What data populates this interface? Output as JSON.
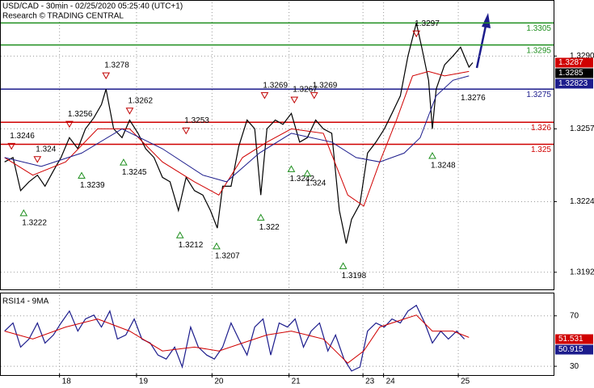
{
  "header": {
    "title": "USD/CAD - 30min - 02/25/2020 05:25:40 (UTC+1)",
    "subtitle": "Research © TRADING CENTRAL"
  },
  "chart_data": [
    {
      "type": "line",
      "xlim": [
        0,
        7.25
      ],
      "ylim": [
        1.31846,
        1.33143
      ],
      "yticks": [
        1.3192,
        1.3224,
        1.3257,
        {
          "value": 1.329,
          "label": "1.3290"
        }
      ],
      "grid": true,
      "x": [
        0.05,
        0.16,
        0.26,
        0.37,
        0.48,
        0.58,
        0.69,
        0.79,
        0.9,
        1.01,
        1.11,
        1.22,
        1.32,
        1.38,
        1.48,
        1.59,
        1.69,
        1.8,
        1.9,
        2.01,
        2.12,
        2.22,
        2.33,
        2.43,
        2.54,
        2.65,
        2.75,
        2.84,
        2.91,
        3.02,
        3.12,
        3.23,
        3.33,
        3.41,
        3.49,
        3.6,
        3.7,
        3.81,
        3.92,
        4.02,
        4.13,
        4.23,
        4.34,
        4.44,
        4.53,
        4.6,
        4.71,
        4.81,
        4.92,
        5.03,
        5.13,
        5.24,
        5.34,
        5.45,
        5.52,
        5.61,
        5.66,
        5.71,
        5.82,
        5.93,
        6.03,
        6.14,
        6.19
      ],
      "series": [
        {
          "color": "#000000",
          "values": [
            1.3242,
            1.3244,
            1.3229,
            1.3233,
            1.3236,
            1.3231,
            1.3238,
            1.3244,
            1.3253,
            1.3248,
            1.3257,
            1.3262,
            1.3268,
            1.3275,
            1.3257,
            1.3253,
            1.3261,
            1.3255,
            1.3248,
            1.3244,
            1.3235,
            1.3233,
            1.322,
            1.3235,
            1.3229,
            1.3227,
            1.322,
            1.3212,
            1.3231,
            1.3231,
            1.3249,
            1.3261,
            1.3257,
            1.3227,
            1.3257,
            1.3261,
            1.3259,
            1.3264,
            1.3251,
            1.3253,
            1.3261,
            1.3257,
            1.3255,
            1.322,
            1.3205,
            1.3216,
            1.3223,
            1.3246,
            1.3251,
            1.3257,
            1.3264,
            1.3272,
            1.329,
            1.3305,
            1.3294,
            1.3279,
            1.3257,
            1.3275,
            1.3286,
            1.329,
            1.3294,
            1.3285,
            1.3287
          ]
        },
        {
          "color": "#d00000",
          "x": [
            0.05,
            0.42,
            0.85,
            1.27,
            1.69,
            2.12,
            2.54,
            2.86,
            3.17,
            3.49,
            3.81,
            4.23,
            4.55,
            4.76,
            4.97,
            5.19,
            5.4,
            5.61,
            5.82,
            6.14
          ],
          "values": [
            1.3244,
            1.3236,
            1.3242,
            1.3257,
            1.3257,
            1.3242,
            1.3233,
            1.3227,
            1.3244,
            1.3251,
            1.3257,
            1.3255,
            1.3227,
            1.3222,
            1.3242,
            1.3261,
            1.3281,
            1.3283,
            1.3281,
            1.3283
          ]
        },
        {
          "color": "#1c1c8c",
          "x": [
            0.05,
            0.53,
            1.06,
            1.59,
            2.12,
            2.65,
            2.96,
            3.39,
            3.81,
            4.34,
            4.66,
            4.97,
            5.29,
            5.5,
            5.71,
            5.93,
            6.14
          ],
          "values": [
            1.3244,
            1.324,
            1.3246,
            1.3257,
            1.3248,
            1.3236,
            1.3233,
            1.3246,
            1.3255,
            1.3251,
            1.3244,
            1.3242,
            1.3246,
            1.3253,
            1.3272,
            1.3279,
            1.3281
          ]
        }
      ],
      "levels": [
        {
          "value": 1.3305,
          "color": "#1f8f1f"
        },
        {
          "value": 1.3295,
          "color": "#1f8f1f"
        },
        {
          "value": 1.3275,
          "color": "#1c1c8c"
        },
        {
          "value": 1.326,
          "color": "#d00000"
        },
        {
          "value": 1.325,
          "color": "#d00000"
        }
      ],
      "price_labels": [
        {
          "value": 1.3287,
          "color": "#d00000"
        },
        {
          "value": 1.3285,
          "color": "#000000"
        },
        {
          "value": 1.32823,
          "color": "#1c1c8c"
        }
      ],
      "annotations": [
        {
          "x": 0.14,
          "value": 1.3246,
          "marker": "down"
        },
        {
          "x": 0.48,
          "value": 1.324,
          "marker": "down"
        },
        {
          "x": 0.3,
          "value": 1.3222,
          "marker": "up"
        },
        {
          "x": 1.06,
          "value": 1.3239,
          "marker": "up"
        },
        {
          "x": 0.9,
          "value": 1.3256,
          "marker": "down"
        },
        {
          "x": 1.38,
          "value": 1.3278,
          "marker": "down"
        },
        {
          "x": 1.69,
          "value": 1.3262,
          "marker": "down"
        },
        {
          "x": 1.61,
          "value": 1.3245,
          "marker": "up"
        },
        {
          "x": 2.35,
          "value": 1.3212,
          "marker": "up"
        },
        {
          "x": 2.43,
          "value": 1.3253,
          "marker": "down"
        },
        {
          "x": 2.83,
          "value": 1.3207,
          "marker": "up"
        },
        {
          "x": 3.46,
          "value": 1.3269,
          "marker": "down"
        },
        {
          "x": 3.41,
          "value": 1.322,
          "marker": "up"
        },
        {
          "x": 3.85,
          "value": 1.3267,
          "marker": "down"
        },
        {
          "x": 4.11,
          "value": 1.3269,
          "marker": "down"
        },
        {
          "x": 3.81,
          "value": 1.3242,
          "marker": "up"
        },
        {
          "x": 4.02,
          "value": 1.324,
          "marker": "up"
        },
        {
          "x": 4.49,
          "value": 1.3198,
          "marker": "up"
        },
        {
          "x": 5.45,
          "value": 1.3297,
          "marker": "down"
        },
        {
          "x": 5.66,
          "value": 1.3248,
          "marker": "up"
        },
        {
          "x": 6.18,
          "value": 1.3276
        }
      ]
    },
    {
      "type": "line",
      "title": "RSI14 - 9MA",
      "xlim": [
        0,
        7.25
      ],
      "xticks": [
        {
          "value": 0.77,
          "label": "18"
        },
        {
          "value": 1.78,
          "label": "19"
        },
        {
          "value": 2.77,
          "label": "20"
        },
        {
          "value": 3.78,
          "label": "21"
        },
        {
          "value": 4.75,
          "label": "23"
        },
        {
          "value": 5.02,
          "label": "24"
        },
        {
          "value": 6.0,
          "label": "25"
        }
      ],
      "ylim": [
        24.3,
        86.5
      ],
      "yticks": [
        70,
        30
      ],
      "grid": true,
      "x": [
        0.05,
        0.16,
        0.26,
        0.37,
        0.48,
        0.58,
        0.69,
        0.79,
        0.9,
        1.01,
        1.11,
        1.22,
        1.32,
        1.43,
        1.53,
        1.64,
        1.75,
        1.85,
        1.96,
        2.06,
        2.17,
        2.28,
        2.38,
        2.49,
        2.59,
        2.7,
        2.8,
        2.91,
        3.02,
        3.12,
        3.23,
        3.33,
        3.44,
        3.54,
        3.65,
        3.76,
        3.86,
        3.97,
        4.07,
        4.18,
        4.29,
        4.39,
        4.5,
        4.6,
        4.71,
        4.81,
        4.92,
        5.03,
        5.13,
        5.24,
        5.34,
        5.45,
        5.56,
        5.66,
        5.77,
        5.87,
        5.98,
        6.08
      ],
      "series": [
        {
          "color": "#1c1c8c",
          "values": [
            57.9,
            64.3,
            45.2,
            51.6,
            64.3,
            48.4,
            54.8,
            64.3,
            73.8,
            57.9,
            67.5,
            70.6,
            61.1,
            73.8,
            51.6,
            54.8,
            67.5,
            51.6,
            48.4,
            38.9,
            35.7,
            45.2,
            29.4,
            61.1,
            45.2,
            38.9,
            35.7,
            45.2,
            64.3,
            51.6,
            38.9,
            61.1,
            67.5,
            38.9,
            64.3,
            61.1,
            67.5,
            45.2,
            57.9,
            64.3,
            42.1,
            54.8,
            35.7,
            26.2,
            29.4,
            57.9,
            64.3,
            61.1,
            67.5,
            64.3,
            73.8,
            78.3,
            64.3,
            48.4,
            57.9,
            51.6,
            57.9,
            51.6
          ]
        },
        {
          "color": "#d00000",
          "x": [
            0.05,
            0.42,
            0.85,
            1.27,
            1.69,
            2.12,
            2.54,
            2.86,
            3.17,
            3.49,
            3.81,
            4.23,
            4.55,
            4.76,
            4.97,
            5.29,
            5.45,
            5.66,
            5.93,
            6.14
          ],
          "values": [
            57.9,
            51.6,
            61.1,
            67.5,
            57.9,
            42.1,
            45.2,
            42.1,
            48.4,
            54.8,
            57.9,
            51.6,
            32.5,
            42.1,
            61.1,
            67.5,
            70.6,
            57.9,
            57.9,
            52.9
          ]
        }
      ],
      "price_labels": [
        {
          "value": 51.531,
          "color": "#d00000"
        },
        {
          "value": 50.915,
          "color": "#1c1c8c"
        }
      ]
    }
  ]
}
